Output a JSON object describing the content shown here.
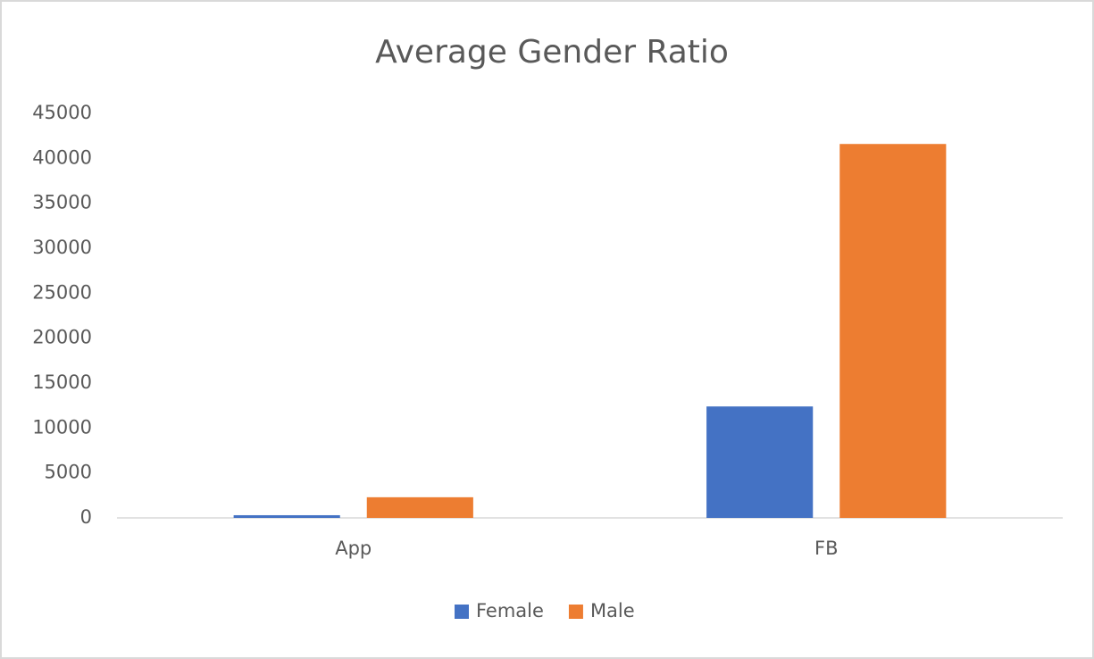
{
  "chart_data": {
    "type": "bar",
    "title": "Average Gender Ratio",
    "categories": [
      "App",
      "FB"
    ],
    "series": [
      {
        "name": "Female",
        "color": "#4472c4",
        "values": [
          300,
          12400
        ]
      },
      {
        "name": "Male",
        "color": "#ed7d31",
        "values": [
          2300,
          41600
        ]
      }
    ],
    "ylim": [
      0,
      45000
    ],
    "yticks": [
      0,
      5000,
      10000,
      15000,
      20000,
      25000,
      30000,
      35000,
      40000,
      45000
    ],
    "grid": false,
    "legend": "bottom"
  }
}
